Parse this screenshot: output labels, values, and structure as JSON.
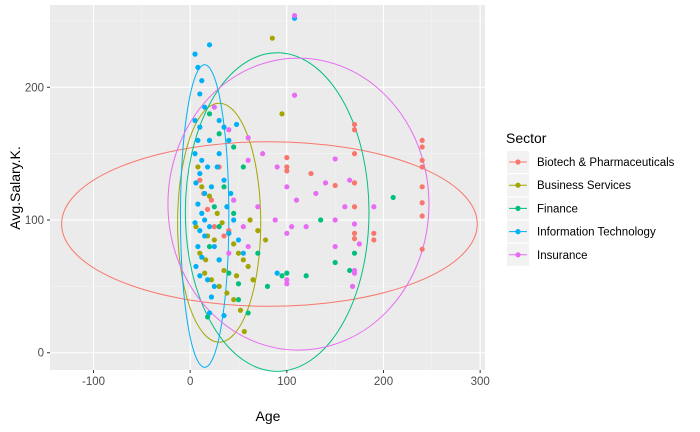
{
  "chart_data": {
    "type": "scatter",
    "xlabel": "Age",
    "ylabel": "Avg.Salary.K.",
    "xlim": [
      -145,
      305
    ],
    "ylim": [
      -13,
      262
    ],
    "xticks": [
      -100,
      0,
      100,
      200,
      300
    ],
    "yticks": [
      0,
      100,
      200
    ],
    "grid": true,
    "legend": {
      "title": "Sector",
      "position": "right"
    },
    "series": [
      {
        "name": "Biotech & Pharmaceuticals",
        "color": "#F8766D",
        "points": [
          [
            10,
            130
          ],
          [
            18,
            108
          ],
          [
            25,
            95
          ],
          [
            30,
            140
          ],
          [
            35,
            88
          ],
          [
            14,
            120
          ],
          [
            22,
            115
          ],
          [
            40,
            92
          ],
          [
            100,
            147
          ],
          [
            100,
            137
          ],
          [
            100,
            140
          ],
          [
            125,
            135
          ],
          [
            150,
            126
          ],
          [
            170,
            172
          ],
          [
            170,
            168
          ],
          [
            170,
            150
          ],
          [
            170,
            128
          ],
          [
            170,
            110
          ],
          [
            170,
            90
          ],
          [
            170,
            86
          ],
          [
            190,
            90
          ],
          [
            190,
            85
          ],
          [
            240,
            160
          ],
          [
            240,
            155
          ],
          [
            240,
            145
          ],
          [
            240,
            140
          ],
          [
            240,
            125
          ],
          [
            240,
            113
          ],
          [
            240,
            103
          ],
          [
            240,
            78
          ]
        ],
        "ellipse": {
          "cx": 82,
          "cy": 97,
          "rx": 215,
          "ry": 62
        }
      },
      {
        "name": "Business Services",
        "color": "#A3A500",
        "points": [
          [
            85,
            237
          ],
          [
            95,
            180
          ],
          [
            8,
            140
          ],
          [
            12,
            125
          ],
          [
            20,
            118
          ],
          [
            28,
            105
          ],
          [
            33,
            98
          ],
          [
            40,
            90
          ],
          [
            45,
            82
          ],
          [
            50,
            75
          ],
          [
            55,
            70
          ],
          [
            60,
            65
          ],
          [
            15,
            60
          ],
          [
            22,
            55
          ],
          [
            30,
            50
          ],
          [
            38,
            45
          ],
          [
            45,
            40
          ],
          [
            52,
            32
          ],
          [
            56,
            16
          ],
          [
            18,
            88
          ],
          [
            25,
            85
          ],
          [
            62,
            100
          ],
          [
            70,
            92
          ],
          [
            78,
            85
          ],
          [
            10,
            75
          ],
          [
            6,
            95
          ],
          [
            16,
            70
          ],
          [
            35,
            62
          ],
          [
            48,
            58
          ],
          [
            65,
            55
          ]
        ],
        "ellipse": {
          "cx": 30,
          "cy": 98,
          "rx": 43,
          "ry": 90
        }
      },
      {
        "name": "Finance",
        "color": "#00BF7D",
        "points": [
          [
            20,
            180
          ],
          [
            30,
            165
          ],
          [
            45,
            155
          ],
          [
            55,
            140
          ],
          [
            35,
            125
          ],
          [
            25,
            110
          ],
          [
            30,
            95
          ],
          [
            20,
            80
          ],
          [
            30,
            70
          ],
          [
            40,
            60
          ],
          [
            50,
            52
          ],
          [
            80,
            50
          ],
          [
            100,
            60
          ],
          [
            120,
            58
          ],
          [
            135,
            100
          ],
          [
            150,
            68
          ],
          [
            165,
            62
          ],
          [
            170,
            75
          ],
          [
            210,
            117
          ],
          [
            18,
            27
          ],
          [
            50,
            40
          ],
          [
            60,
            30
          ],
          [
            95,
            58
          ],
          [
            70,
            75
          ],
          [
            45,
            105
          ]
        ],
        "ellipse": {
          "cx": 90,
          "cy": 106,
          "rx": 95,
          "ry": 120
        }
      },
      {
        "name": "Information Technology",
        "color": "#00B0F6",
        "points": [
          [
            20,
            232
          ],
          [
            5,
            225
          ],
          [
            8,
            215
          ],
          [
            12,
            205
          ],
          [
            10,
            195
          ],
          [
            15,
            185
          ],
          [
            5,
            175
          ],
          [
            10,
            170
          ],
          [
            8,
            160
          ],
          [
            5,
            150
          ],
          [
            12,
            145
          ],
          [
            10,
            135
          ],
          [
            6,
            128
          ],
          [
            15,
            120
          ],
          [
            8,
            112
          ],
          [
            12,
            105
          ],
          [
            5,
            98
          ],
          [
            10,
            92
          ],
          [
            15,
            88
          ],
          [
            8,
            80
          ],
          [
            12,
            72
          ],
          [
            6,
            65
          ],
          [
            10,
            58
          ],
          [
            18,
            55
          ],
          [
            25,
            50
          ],
          [
            22,
            42
          ],
          [
            20,
            30
          ],
          [
            35,
            170
          ],
          [
            40,
            160
          ],
          [
            30,
            150
          ],
          [
            28,
            140
          ],
          [
            35,
            130
          ],
          [
            42,
            120
          ],
          [
            38,
            110
          ],
          [
            45,
            100
          ],
          [
            40,
            90
          ],
          [
            50,
            85
          ],
          [
            55,
            75
          ],
          [
            30,
            70
          ],
          [
            25,
            80
          ],
          [
            20,
            95
          ],
          [
            15,
            100
          ],
          [
            22,
            125
          ],
          [
            18,
            140
          ],
          [
            20,
            160
          ],
          [
            30,
            175
          ],
          [
            48,
            172
          ],
          [
            108,
            252
          ],
          [
            90,
            60
          ],
          [
            35,
            28
          ]
        ],
        "ellipse": {
          "cx": 15,
          "cy": 103,
          "rx": 25,
          "ry": 114
        }
      },
      {
        "name": "Insurance",
        "color": "#E76BF3",
        "points": [
          [
            108,
            254
          ],
          [
            108,
            194
          ],
          [
            25,
            185
          ],
          [
            40,
            168
          ],
          [
            60,
            162
          ],
          [
            75,
            150
          ],
          [
            90,
            140
          ],
          [
            100,
            125
          ],
          [
            110,
            115
          ],
          [
            105,
            95
          ],
          [
            100,
            90
          ],
          [
            120,
            95
          ],
          [
            130,
            120
          ],
          [
            140,
            128
          ],
          [
            150,
            100
          ],
          [
            160,
            110
          ],
          [
            170,
            97
          ],
          [
            170,
            62
          ],
          [
            170,
            60
          ],
          [
            150,
            80
          ],
          [
            165,
            130
          ],
          [
            168,
            50
          ],
          [
            100,
            55
          ],
          [
            100,
            52
          ],
          [
            88,
            100
          ],
          [
            70,
            110
          ],
          [
            55,
            95
          ],
          [
            60,
            80
          ],
          [
            40,
            75
          ],
          [
            45,
            115
          ],
          [
            60,
            145
          ],
          [
            150,
            146
          ],
          [
            190,
            110
          ],
          [
            175,
            82
          ]
        ],
        "ellipse": {
          "cx": 112,
          "cy": 112,
          "rx": 135,
          "ry": 110
        }
      }
    ]
  }
}
